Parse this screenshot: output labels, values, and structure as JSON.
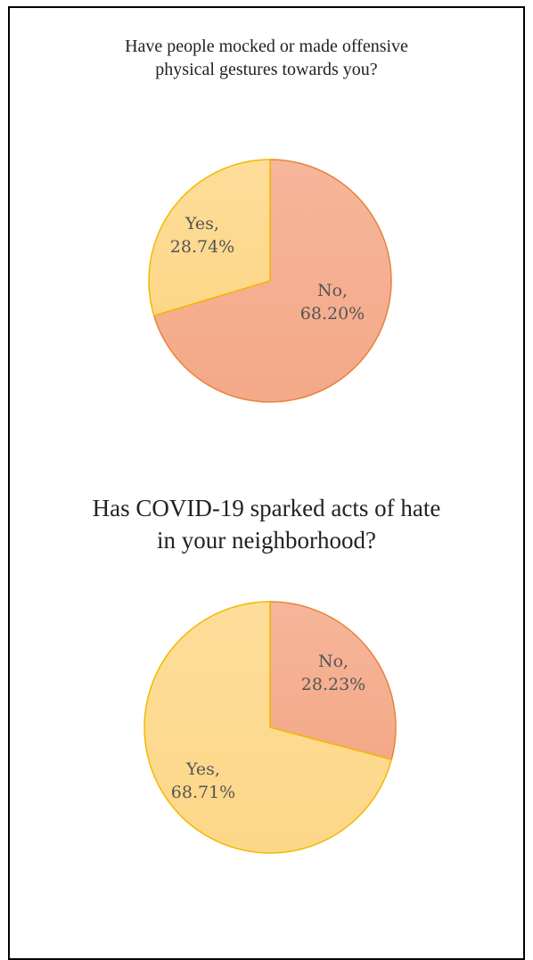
{
  "chart_data": [
    {
      "type": "pie",
      "title": "Have people mocked or made offensive physical gestures towards you?",
      "slices": [
        {
          "label": "No",
          "value": 68.2,
          "label_text": "68.20%",
          "color": "#F4A988",
          "stroke": "#E8833A"
        },
        {
          "label": "Yes",
          "value": 28.74,
          "label_text": "28.74%",
          "color": "#FDD788",
          "stroke": "#F2B900"
        }
      ]
    },
    {
      "type": "pie",
      "title": "Has COVID-19 sparked acts of hate in your neighborhood?",
      "slices": [
        {
          "label": "No",
          "value": 28.23,
          "label_text": "28.23%",
          "color": "#F4A988",
          "stroke": "#E8833A"
        },
        {
          "label": "Yes",
          "value": 68.71,
          "label_text": "68.71%",
          "color": "#FDD788",
          "stroke": "#F2B900"
        }
      ]
    }
  ]
}
